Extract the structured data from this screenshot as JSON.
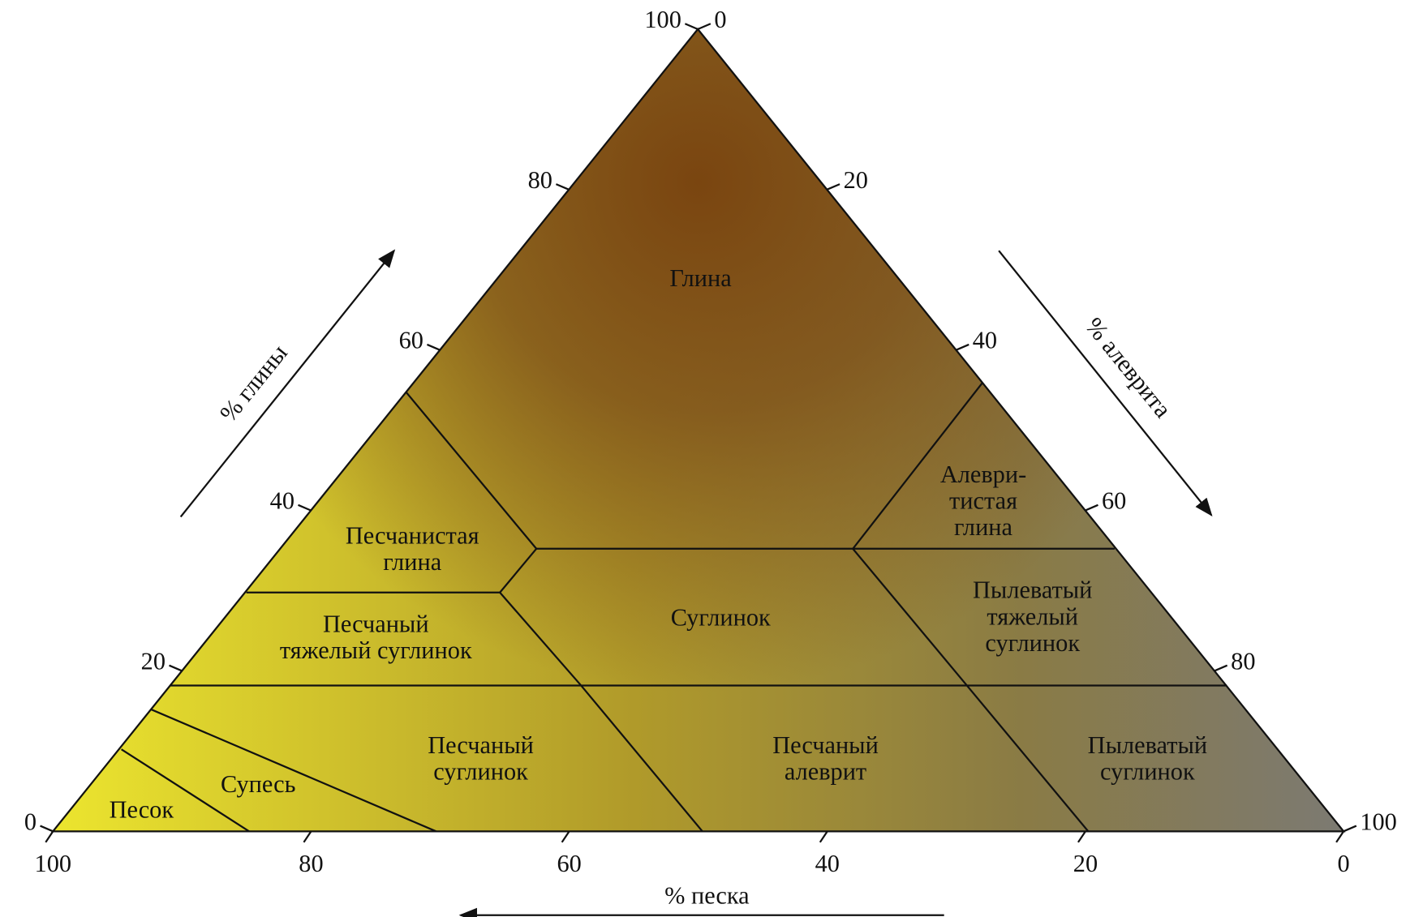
{
  "axes": {
    "clay": {
      "label": "% глины",
      "ticks": [
        "0",
        "20",
        "40",
        "60",
        "80",
        "100"
      ]
    },
    "silt": {
      "label": "% алеврита",
      "ticks": [
        "0",
        "20",
        "40",
        "60",
        "80",
        "100"
      ]
    },
    "sand": {
      "label": "% песка",
      "ticks": [
        "100",
        "80",
        "60",
        "40",
        "20",
        "0"
      ]
    }
  },
  "regions": [
    {
      "lines": [
        "Глина"
      ]
    },
    {
      "lines": [
        "Песчанистая",
        "глина"
      ]
    },
    {
      "lines": [
        "Алеври-",
        "тистая",
        "глина"
      ]
    },
    {
      "lines": [
        "Песчаный",
        "тяжелый суглинок"
      ]
    },
    {
      "lines": [
        "Суглинок"
      ]
    },
    {
      "lines": [
        "Пылеватый",
        "тяжелый",
        "суглинок"
      ]
    },
    {
      "lines": [
        "Песчаный",
        "суглинок"
      ]
    },
    {
      "lines": [
        "Песчаный",
        "алеврит"
      ]
    },
    {
      "lines": [
        "Пылеватый",
        "суглинок"
      ]
    },
    {
      "lines": [
        "Супесь"
      ]
    },
    {
      "lines": [
        "Песок"
      ]
    }
  ]
}
